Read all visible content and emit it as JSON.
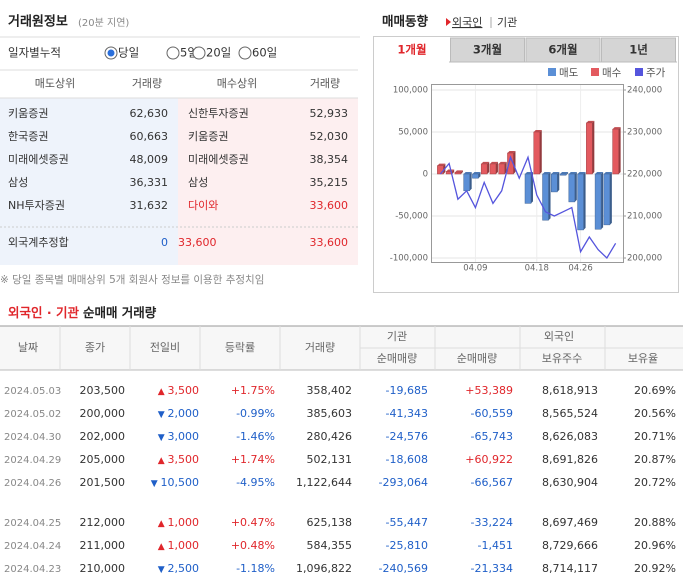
{
  "broker_panel": {
    "title": "거래원정보",
    "delay": "(20분 지연)",
    "period_label": "일자별누적",
    "periods": [
      "당일",
      "5일",
      "20일",
      "60일"
    ],
    "selected_period": 0,
    "headers": [
      "매도상위",
      "거래량",
      "매수상위",
      "거래량"
    ],
    "rows": [
      [
        "키움증권",
        "62,630",
        "신한투자증권",
        "52,933"
      ],
      [
        "한국증권",
        "60,663",
        "키움증권",
        "52,030"
      ],
      [
        "미래에셋증권",
        "48,009",
        "미래에셋증권",
        "38,354"
      ],
      [
        "삼성",
        "36,331",
        "삼성",
        "35,215"
      ],
      [
        "NH투자증권",
        "31,632",
        "다이와",
        "33,600"
      ]
    ],
    "highlight_buy_rows": [
      4
    ],
    "foreign_row": [
      "외국계추정합",
      "0",
      "33,600",
      "33,600"
    ],
    "note": "※ 당일 종목별 매매상위 5개 회원사 정보를 이용한 추정치임"
  },
  "trend_panel": {
    "title": "매매동향",
    "links": [
      "외국인",
      "기관"
    ],
    "tabs": [
      "1개월",
      "3개월",
      "6개월",
      "1년"
    ],
    "active_tab": 0
  },
  "chart_data": {
    "type": "bar",
    "categories": [
      null,
      null,
      null,
      null,
      "04.09",
      null,
      null,
      null,
      null,
      null,
      null,
      "04.18",
      null,
      null,
      null,
      null,
      "04.26",
      null,
      null,
      null,
      null
    ],
    "series": [
      {
        "name": "매도",
        "color": "#5b8fd6",
        "values": [
          null,
          null,
          null,
          -20000,
          -5000,
          null,
          null,
          null,
          null,
          null,
          -35000,
          null,
          -55000,
          -21334,
          -1451,
          -33224,
          -66567,
          null,
          -65743,
          -60559,
          null
        ]
      },
      {
        "name": "매수",
        "color": "#e35a5f",
        "values": [
          10000,
          3000,
          2000,
          null,
          null,
          12000,
          12000,
          12000,
          25000,
          null,
          null,
          50000,
          null,
          null,
          null,
          null,
          null,
          60922,
          null,
          null,
          53389
        ]
      },
      {
        "name": "주가",
        "color": "#5555dd",
        "type": "line",
        "axis": "y2",
        "values": [
          220000,
          222500,
          214000,
          216000,
          212000,
          218000,
          213000,
          216000,
          224000,
          219000,
          224000,
          215000,
          211000,
          210000,
          211000,
          212000,
          201500,
          205000,
          202000,
          200000,
          203500
        ]
      }
    ],
    "ylim": [
      -100000,
      100000
    ],
    "yticks": [
      {
        "value": -100000,
        "label": "-100,000"
      },
      {
        "value": -50000,
        "label": "-50,000"
      },
      0,
      {
        "value": 50000,
        "label": "50,000"
      },
      {
        "value": 100000,
        "label": "100,000"
      }
    ],
    "y2lim": [
      200000,
      240000
    ],
    "y2ticks": [
      {
        "value": 200000,
        "label": "200,000"
      },
      {
        "value": 210000,
        "label": "210,000"
      },
      {
        "value": 220000,
        "label": "220,000"
      },
      {
        "value": 230000,
        "label": "230,000"
      },
      {
        "value": 240000,
        "label": "240,000"
      }
    ],
    "grid": true
  },
  "flow_table": {
    "title_highlight": "외국인 · 기관",
    "title_rest": "순매매 거래량",
    "group_headers": [
      "기관",
      "외국인"
    ],
    "headers": [
      "날짜",
      "종가",
      "전일비",
      "등락률",
      "거래량",
      "순매매량",
      "순매매량",
      "보유주수",
      "보유율"
    ],
    "rows": [
      [
        "2024.05.03",
        "203,500",
        "3,500",
        "+1.75%",
        "358,402",
        "-19,685",
        "+53,389",
        "8,618,913",
        "20.69%"
      ],
      [
        "2024.05.02",
        "200,000",
        "2,000",
        "-0.99%",
        "385,603",
        "-41,343",
        "-60,559",
        "8,565,524",
        "20.56%"
      ],
      [
        "2024.04.30",
        "202,000",
        "3,000",
        "-1.46%",
        "280,426",
        "-24,576",
        "-65,743",
        "8,626,083",
        "20.71%"
      ],
      [
        "2024.04.29",
        "205,000",
        "3,500",
        "+1.74%",
        "502,131",
        "-18,608",
        "+60,922",
        "8,691,826",
        "20.87%"
      ],
      [
        "2024.04.26",
        "201,500",
        "10,500",
        "-4.95%",
        "1,122,644",
        "-293,064",
        "-66,567",
        "8,630,904",
        "20.72%"
      ],
      [
        "2024.04.25",
        "212,000",
        "1,000",
        "+0.47%",
        "625,138",
        "-55,447",
        "-33,224",
        "8,697,469",
        "20.88%"
      ],
      [
        "2024.04.24",
        "211,000",
        "1,000",
        "+0.48%",
        "584,355",
        "-25,810",
        "-1,451",
        "8,729,666",
        "20.96%"
      ],
      [
        "2024.04.23",
        "210,000",
        "2,500",
        "-1.18%",
        "1,096,822",
        "-240,569",
        "-21,334",
        "8,714,117",
        "20.92%"
      ]
    ]
  }
}
